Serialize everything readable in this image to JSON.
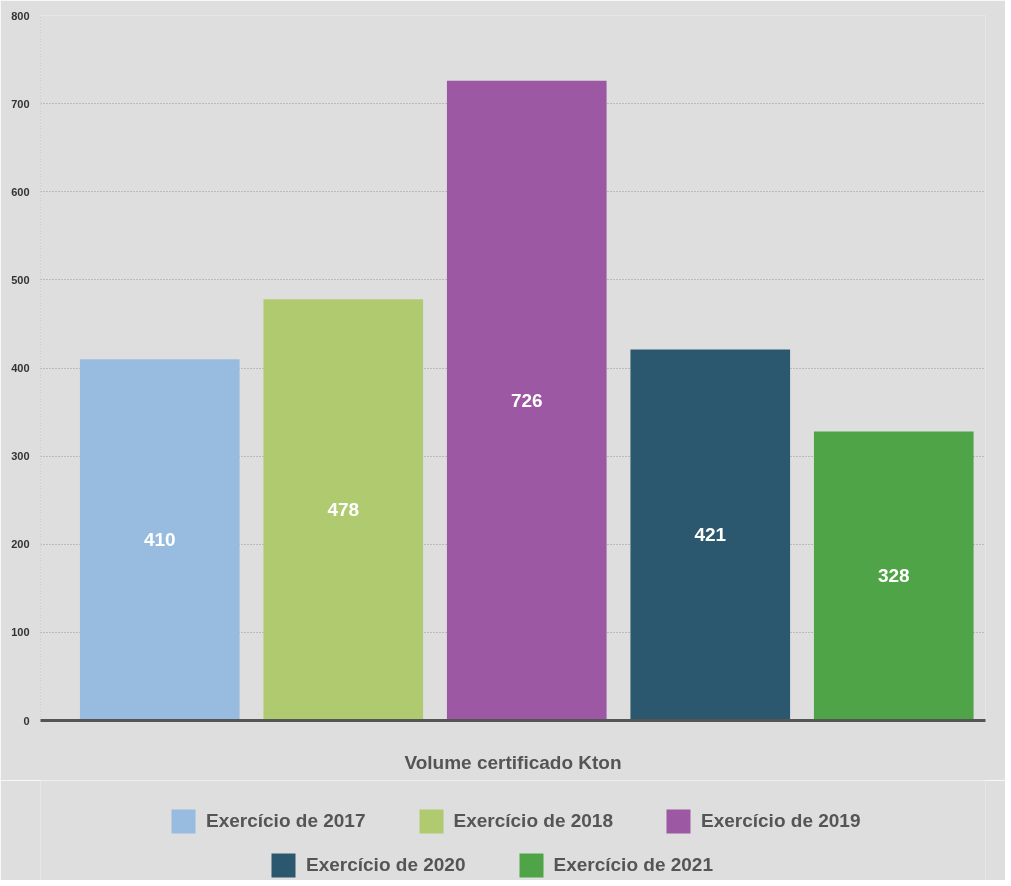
{
  "chart_data": {
    "type": "bar",
    "xlabel": "Volume certificado Kton",
    "categories": [
      null
    ],
    "series": [
      {
        "name": "Exercício de 2017",
        "color": "#97bcdf",
        "values": [
          410
        ]
      },
      {
        "name": "Exercício de 2018",
        "color": "#b0ca6f",
        "values": [
          478
        ]
      },
      {
        "name": "Exercício de 2019",
        "color": "#9c58a3",
        "values": [
          726
        ]
      },
      {
        "name": "Exercício de 2020",
        "color": "#2b586e",
        "values": [
          421
        ]
      },
      {
        "name": "Exercício de 2021",
        "color": "#4ea446",
        "values": [
          328
        ]
      }
    ],
    "ylim": [
      0,
      800
    ],
    "yticks": [
      0,
      100,
      200,
      300,
      400,
      500,
      600,
      700,
      800
    ],
    "grid": "y",
    "legend": "bottom",
    "data_labels": true
  }
}
